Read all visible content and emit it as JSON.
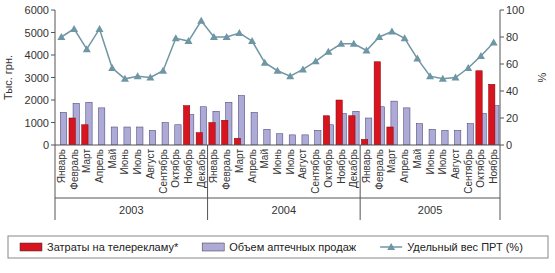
{
  "chart_data": {
    "type": "bar",
    "y_label": "Тыс. грн.",
    "y2_label": "%",
    "categories": [
      "Январь",
      "Февраль",
      "Март",
      "Апрель",
      "Май",
      "Июнь",
      "Июль",
      "Август",
      "Сентябрь",
      "Октябрь",
      "Ноябрь",
      "Декабрь",
      "Январь",
      "Февраль",
      "Март",
      "Апрель",
      "Май",
      "Июнь",
      "Июль",
      "Август",
      "Сентябрь",
      "Октябрь",
      "Ноябрь",
      "Декабрь",
      "Январь",
      "Февраль",
      "Март",
      "Апрель",
      "Май",
      "Июнь",
      "Июль",
      "Август",
      "Сентябрь",
      "Октябрь",
      "Ноябрь"
    ],
    "x_groups": [
      {
        "label": "2003",
        "size": 12
      },
      {
        "label": "2004",
        "size": 12
      },
      {
        "label": "2005",
        "size": 11
      }
    ],
    "series": [
      {
        "name": "Затраты на телерекламу*",
        "type": "bar",
        "color": "#d8141e",
        "values": [
          null,
          1200,
          900,
          null,
          null,
          null,
          null,
          null,
          null,
          null,
          1750,
          550,
          1000,
          1100,
          300,
          null,
          null,
          null,
          null,
          null,
          null,
          1300,
          2000,
          1300,
          250,
          3700,
          800,
          null,
          null,
          null,
          null,
          null,
          null,
          3300,
          2700
        ]
      },
      {
        "name": "Объем аптечных продаж",
        "type": "bar",
        "color": "#aeaad8",
        "values": [
          1450,
          1850,
          1900,
          1650,
          800,
          800,
          800,
          650,
          1000,
          900,
          1350,
          1700,
          1500,
          1900,
          2200,
          1450,
          700,
          500,
          450,
          450,
          650,
          900,
          1400,
          1500,
          1200,
          1700,
          1950,
          1650,
          950,
          700,
          650,
          650,
          950,
          1400,
          1750
        ]
      },
      {
        "name": "Удельный вес ПРТ (%)",
        "type": "line",
        "axis": "y2",
        "color": "#6f96a4",
        "marker": "triangle",
        "values": [
          80,
          86,
          71,
          86,
          57,
          49,
          51,
          50,
          55,
          79,
          77,
          92,
          80,
          80,
          83,
          77,
          61,
          55,
          51,
          56,
          62,
          69,
          75,
          75,
          70,
          80,
          84,
          79,
          64,
          51,
          49,
          50,
          57,
          66,
          76
        ]
      }
    ],
    "ylim": [
      0,
      6000
    ],
    "yticks": [
      0,
      1000,
      2000,
      3000,
      4000,
      5000,
      6000
    ],
    "y2lim": [
      0,
      100
    ],
    "y2ticks": [
      0,
      20,
      40,
      60,
      80,
      100
    ],
    "grid": false,
    "legend": "bottom"
  }
}
